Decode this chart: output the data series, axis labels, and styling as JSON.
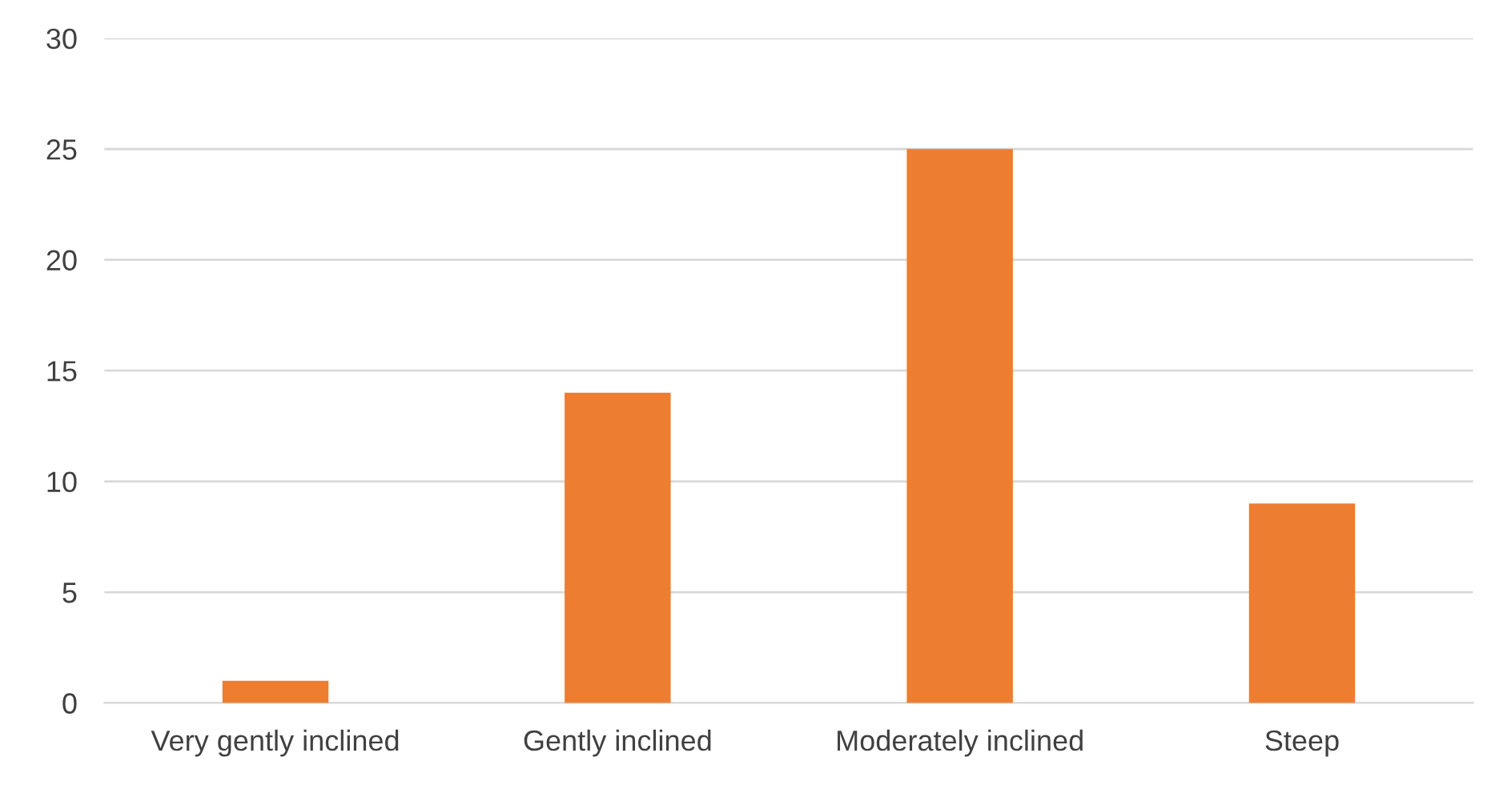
{
  "chart_data": {
    "type": "bar",
    "categories": [
      "Very gently inclined",
      "Gently inclined",
      "Moderately inclined",
      "Steep"
    ],
    "values": [
      1,
      14,
      25,
      9
    ],
    "color": "#ed7d31",
    "ylim": [
      0,
      30
    ],
    "yticks": [
      0,
      5,
      10,
      15,
      20,
      25,
      30
    ],
    "grid": "y",
    "legend": false
  }
}
